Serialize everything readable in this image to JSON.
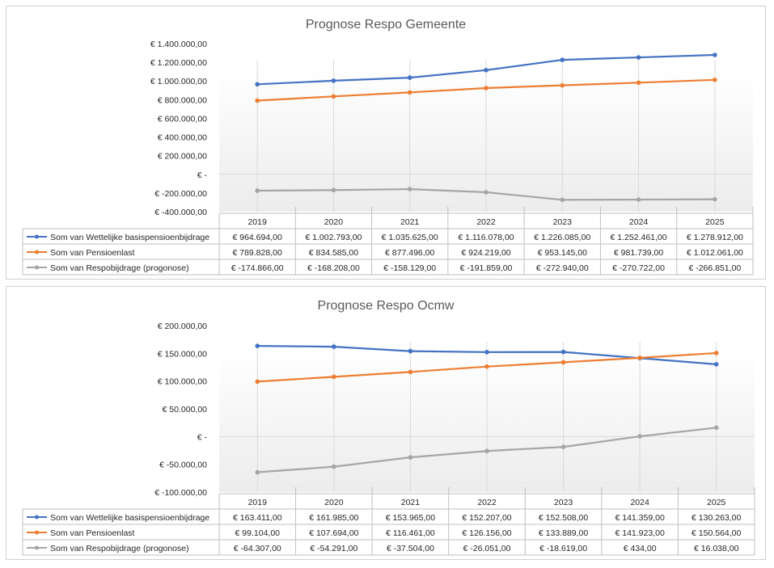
{
  "chart_data": [
    {
      "type": "line",
      "title": "Prognose Respo Gemeente",
      "categories": [
        "2019",
        "2020",
        "2021",
        "2022",
        "2023",
        "2024",
        "2025"
      ],
      "ylim": [
        -400000,
        1400000
      ],
      "ytick_labels": [
        "€ 1.400.000,00",
        "€ 1.200.000,00",
        "€ 1.000.000,00",
        "€ 800.000,00",
        "€ 600.000,00",
        "€ 400.000,00",
        "€ 200.000,00",
        "€ -",
        "€ -200.000,00",
        "€ -400.000,00"
      ],
      "legend": "data-table",
      "series": [
        {
          "name": "Som van Wettelijke basispensioenbijdrage",
          "color": "#4472c4",
          "values": [
            964694,
            1002793,
            1035625,
            1116078,
            1226085,
            1252461,
            1278912
          ],
          "labels": [
            "€ 964.694,00",
            "€ 1.002.793,00",
            "€ 1.035.625,00",
            "€ 1.116.078,00",
            "€ 1.226.085,00",
            "€ 1.252.461,00",
            "€ 1.278.912,00"
          ]
        },
        {
          "name": "Som van Pensioenlast",
          "color": "#ed7d31",
          "values": [
            789828,
            834585,
            877496,
            924219,
            953145,
            981739,
            1012061
          ],
          "labels": [
            "€ 789.828,00",
            "€ 834.585,00",
            "€ 877.496,00",
            "€ 924.219,00",
            "€ 953.145,00",
            "€ 981.739,00",
            "€ 1.012.061,00"
          ]
        },
        {
          "name": "Som van Respobijdrage (progonose)",
          "color": "#a5a5a5",
          "values": [
            -174866,
            -168208,
            -158129,
            -191859,
            -272940,
            -270722,
            -266851
          ],
          "labels": [
            "€ -174.866,00",
            "€ -168.208,00",
            "€ -158.129,00",
            "€ -191.859,00",
            "€ -272.940,00",
            "€ -270.722,00",
            "€ -266.851,00"
          ]
        }
      ]
    },
    {
      "type": "line",
      "title": "Prognose Respo Ocmw",
      "categories": [
        "2019",
        "2020",
        "2021",
        "2022",
        "2023",
        "2024",
        "2025"
      ],
      "ylim": [
        -100000,
        200000
      ],
      "ytick_labels": [
        "€ 200.000,00",
        "€ 150.000,00",
        "€ 100.000,00",
        "€ 50.000,00",
        "€ -",
        "€ -50.000,00",
        "€ -100.000,00"
      ],
      "legend": "data-table",
      "series": [
        {
          "name": "Som van Wettelijke basispensioenbijdrage",
          "color": "#4472c4",
          "values": [
            163411,
            161985,
            153965,
            152207,
            152508,
            141359,
            130263
          ],
          "labels": [
            "€ 163.411,00",
            "€ 161.985,00",
            "€ 153.965,00",
            "€ 152.207,00",
            "€ 152.508,00",
            "€ 141.359,00",
            "€ 130.263,00"
          ]
        },
        {
          "name": "Som van Pensioenlast",
          "color": "#ed7d31",
          "values": [
            99104,
            107694,
            116461,
            126156,
            133889,
            141923,
            150564
          ],
          "labels": [
            "€ 99.104,00",
            "€ 107.694,00",
            "€ 116.461,00",
            "€ 126.156,00",
            "€ 133.889,00",
            "€ 141.923,00",
            "€ 150.564,00"
          ]
        },
        {
          "name": "Som van Respobijdrage (progonose)",
          "color": "#a5a5a5",
          "values": [
            -64307,
            -54291,
            -37504,
            -26051,
            -18619,
            434,
            16038
          ],
          "labels": [
            "€ -64.307,00",
            "€ -54.291,00",
            "€ -37.504,00",
            "€ -26.051,00",
            "€ -18.619,00",
            "€ 434,00",
            "€ 16.038,00"
          ]
        }
      ]
    }
  ]
}
